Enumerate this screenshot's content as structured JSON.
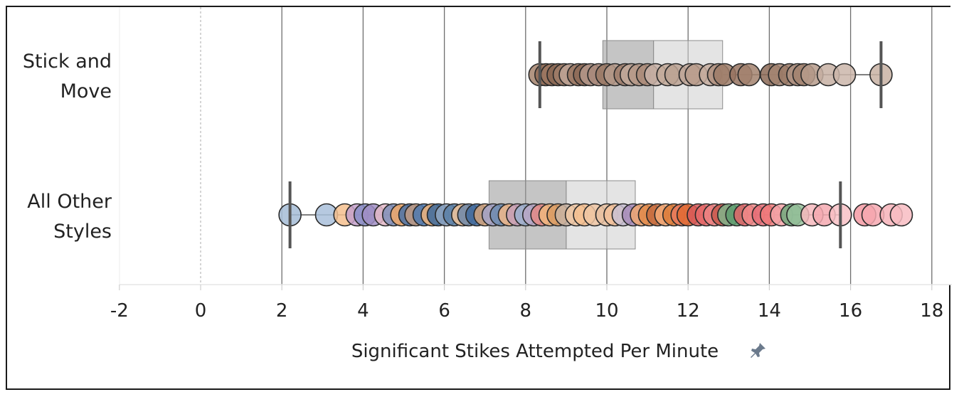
{
  "chart_data": {
    "type": "scatter",
    "subtype": "box-and-whisker with jittered dots",
    "xlabel": "Significant Stikes Attempted Per Minute",
    "xlim": [
      -2,
      18
    ],
    "xticks": [
      -2,
      0,
      2,
      4,
      6,
      8,
      10,
      12,
      14,
      16,
      18
    ],
    "grid": "vertical gridlines at even ticks",
    "categories": [
      "Stick and\nMove",
      "All Other\nStyles"
    ],
    "series": [
      {
        "category": "Stick and Move",
        "box": {
          "lower_whisker": 8.35,
          "q1": 9.9,
          "median": 11.15,
          "q3": 12.85,
          "upper_whisker": 16.75
        },
        "points": [
          {
            "x": 8.35,
            "color": "#a5836c"
          },
          {
            "x": 8.5,
            "color": "#8f6a55"
          },
          {
            "x": 8.65,
            "color": "#9c7762"
          },
          {
            "x": 8.8,
            "color": "#8a6753"
          },
          {
            "x": 8.95,
            "color": "#a07e6a"
          },
          {
            "x": 9.1,
            "color": "#c0a597"
          },
          {
            "x": 9.3,
            "color": "#9a7560"
          },
          {
            "x": 9.45,
            "color": "#8d6a57"
          },
          {
            "x": 9.6,
            "color": "#b4988a"
          },
          {
            "x": 9.8,
            "color": "#a8887a"
          },
          {
            "x": 10.0,
            "color": "#9b7a66"
          },
          {
            "x": 10.2,
            "color": "#b59a8b"
          },
          {
            "x": 10.45,
            "color": "#a07f6d"
          },
          {
            "x": 10.6,
            "color": "#c4ab9e"
          },
          {
            "x": 10.8,
            "color": "#b59887"
          },
          {
            "x": 11.0,
            "color": "#aa8b79"
          },
          {
            "x": 11.2,
            "color": "#c8b2a7"
          },
          {
            "x": 11.5,
            "color": "#c2a999"
          },
          {
            "x": 11.7,
            "color": "#bba293"
          },
          {
            "x": 12.05,
            "color": "#c0a698"
          },
          {
            "x": 12.2,
            "color": "#b89c8c"
          },
          {
            "x": 12.55,
            "color": "#c6ad9f"
          },
          {
            "x": 12.75,
            "color": "#b0917f"
          },
          {
            "x": 12.9,
            "color": "#9e7d69"
          },
          {
            "x": 13.3,
            "color": "#967360"
          },
          {
            "x": 13.5,
            "color": "#a3836f"
          },
          {
            "x": 14.05,
            "color": "#8c6a56"
          },
          {
            "x": 14.25,
            "color": "#a48572"
          },
          {
            "x": 14.5,
            "color": "#9a7966"
          },
          {
            "x": 14.7,
            "color": "#b09382"
          },
          {
            "x": 14.85,
            "color": "#a28370"
          },
          {
            "x": 15.05,
            "color": "#b69b8b"
          },
          {
            "x": 15.45,
            "color": "#c7b0a3"
          },
          {
            "x": 15.85,
            "color": "#cbb6aa"
          },
          {
            "x": 16.75,
            "color": "#c8b1a3"
          }
        ]
      },
      {
        "category": "All Other Styles",
        "box": {
          "lower_whisker": 2.2,
          "q1": 7.1,
          "median": 9.0,
          "q3": 10.7,
          "upper_whisker": 15.75
        },
        "points": [
          {
            "x": 2.2,
            "color": "#a5bcd6"
          },
          {
            "x": 3.1,
            "color": "#a9c0da"
          },
          {
            "x": 3.55,
            "color": "#f4c08e"
          },
          {
            "x": 3.85,
            "color": "#c4a1cb"
          },
          {
            "x": 4.05,
            "color": "#8a8fc7"
          },
          {
            "x": 4.25,
            "color": "#a18ec4"
          },
          {
            "x": 4.55,
            "color": "#e3b9c8"
          },
          {
            "x": 4.75,
            "color": "#7f8fb8"
          },
          {
            "x": 4.95,
            "color": "#f0a86a"
          },
          {
            "x": 5.15,
            "color": "#4a72a8"
          },
          {
            "x": 5.3,
            "color": "#c29b82"
          },
          {
            "x": 5.5,
            "color": "#4e79b0"
          },
          {
            "x": 5.7,
            "color": "#f1b57d"
          },
          {
            "x": 5.85,
            "color": "#3c6a9e"
          },
          {
            "x": 6.05,
            "color": "#8fa6c2"
          },
          {
            "x": 6.25,
            "color": "#5a7fa6"
          },
          {
            "x": 6.45,
            "color": "#f3c59b"
          },
          {
            "x": 6.6,
            "color": "#6d87a8"
          },
          {
            "x": 6.8,
            "color": "#3f689c"
          },
          {
            "x": 7.0,
            "color": "#d5a57d"
          },
          {
            "x": 7.2,
            "color": "#a3a3c9"
          },
          {
            "x": 7.4,
            "color": "#6f8cb0"
          },
          {
            "x": 7.6,
            "color": "#f2b98a"
          },
          {
            "x": 7.8,
            "color": "#c6a0b8"
          },
          {
            "x": 8.0,
            "color": "#9cb1cf"
          },
          {
            "x": 8.2,
            "color": "#b8a7c6"
          },
          {
            "x": 8.4,
            "color": "#e48a86"
          },
          {
            "x": 8.6,
            "color": "#f0b77f"
          },
          {
            "x": 8.8,
            "color": "#d99b63"
          },
          {
            "x": 9.0,
            "color": "#c9b4a3"
          },
          {
            "x": 9.25,
            "color": "#f1c9a6"
          },
          {
            "x": 9.45,
            "color": "#f4bf90"
          },
          {
            "x": 9.7,
            "color": "#f0c7a4"
          },
          {
            "x": 10.0,
            "color": "#e8c1a1"
          },
          {
            "x": 10.2,
            "color": "#f2c19a"
          },
          {
            "x": 10.4,
            "color": "#c9c1d4"
          },
          {
            "x": 10.65,
            "color": "#a78bb8"
          },
          {
            "x": 10.85,
            "color": "#f1a872"
          },
          {
            "x": 11.05,
            "color": "#e08a4a"
          },
          {
            "x": 11.25,
            "color": "#c66c3f"
          },
          {
            "x": 11.45,
            "color": "#f4ac78"
          },
          {
            "x": 11.65,
            "color": "#db7a38"
          },
          {
            "x": 11.85,
            "color": "#e97a5d"
          },
          {
            "x": 12.0,
            "color": "#e06a32"
          },
          {
            "x": 12.25,
            "color": "#d85b5b"
          },
          {
            "x": 12.45,
            "color": "#e66a6a"
          },
          {
            "x": 12.65,
            "color": "#ed8484"
          },
          {
            "x": 12.85,
            "color": "#c85a4d"
          },
          {
            "x": 13.0,
            "color": "#7fb38a"
          },
          {
            "x": 13.2,
            "color": "#5e9c6e"
          },
          {
            "x": 13.4,
            "color": "#e3656a"
          },
          {
            "x": 13.6,
            "color": "#f08a8a"
          },
          {
            "x": 13.85,
            "color": "#e66d77"
          },
          {
            "x": 14.05,
            "color": "#f07a7a"
          },
          {
            "x": 14.3,
            "color": "#f4a4a8"
          },
          {
            "x": 14.55,
            "color": "#71a97d"
          },
          {
            "x": 14.7,
            "color": "#96c19b"
          },
          {
            "x": 15.05,
            "color": "#f6b8bd"
          },
          {
            "x": 15.35,
            "color": "#f5a9b0"
          },
          {
            "x": 15.75,
            "color": "#f8c1c6"
          },
          {
            "x": 16.35,
            "color": "#f49aa3"
          },
          {
            "x": 16.55,
            "color": "#f6a8b0"
          },
          {
            "x": 17.0,
            "color": "#f7b3ba"
          },
          {
            "x": 17.25,
            "color": "#f8bcc2"
          }
        ]
      }
    ]
  },
  "icons": {
    "axis_pin": "pin-icon"
  }
}
